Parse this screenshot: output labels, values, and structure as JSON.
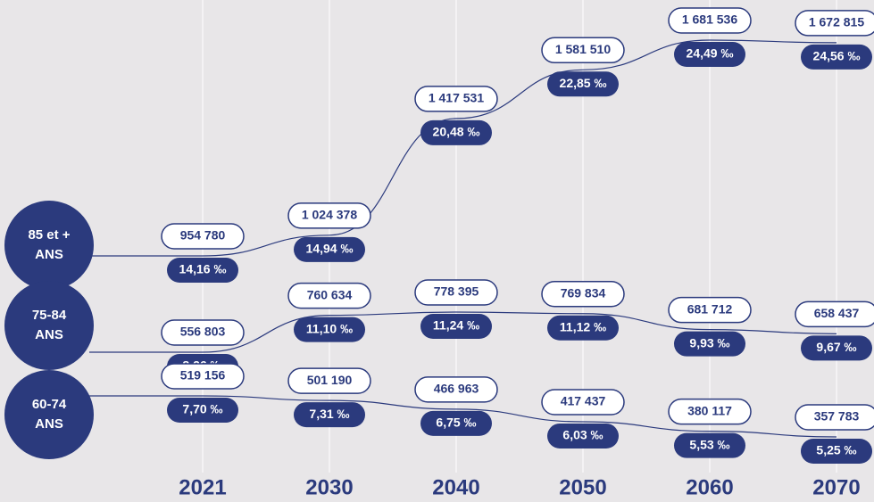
{
  "chart_data": {
    "type": "line",
    "categories": [
      "2021",
      "2030",
      "2040",
      "2050",
      "2060",
      "2070"
    ],
    "color": "#2b3a7d",
    "series": [
      {
        "name": "85 et + ANS",
        "color": "#2b3a7d",
        "values": [
          954780,
          1024378,
          1417531,
          1581510,
          1681536,
          1672815
        ],
        "value_labels": [
          "954 780",
          "1 024 378",
          "1 417 531",
          "1 581 510",
          "1 681 536",
          "1 672 815"
        ],
        "rates": [
          14.16,
          14.94,
          20.48,
          22.85,
          24.49,
          24.56
        ],
        "rate_labels": [
          "14,16 ‰",
          "14,94 ‰",
          "20,48 ‰",
          "22,85 ‰",
          "24,49 ‰",
          "24,56 ‰"
        ]
      },
      {
        "name": "75-84 ANS",
        "color": "#2b3a7d",
        "values": [
          556803,
          760634,
          778395,
          769834,
          681712,
          658437
        ],
        "value_labels": [
          "556 803",
          "760 634",
          "778 395",
          "769 834",
          "681 712",
          "658 437"
        ],
        "rates": [
          8.26,
          11.1,
          11.24,
          11.12,
          9.93,
          9.67
        ],
        "rate_labels": [
          "8,26 ‰",
          "11,10 ‰",
          "11,24 ‰",
          "11,12 ‰",
          "9,93 ‰",
          "9,67 ‰"
        ]
      },
      {
        "name": "60-74 ANS",
        "color": "#2b3a7d",
        "values": [
          519156,
          501190,
          466963,
          417437,
          380117,
          357783
        ],
        "value_labels": [
          "519 156",
          "501 190",
          "466 963",
          "417 437",
          "380 117",
          "357 783"
        ],
        "rates": [
          7.7,
          7.31,
          6.75,
          6.03,
          5.53,
          5.25
        ],
        "rate_labels": [
          "7,70 ‰",
          "7,31 ‰",
          "6,75 ‰",
          "6,03 ‰",
          "5,53 ‰",
          "5,25 ‰"
        ]
      }
    ]
  }
}
